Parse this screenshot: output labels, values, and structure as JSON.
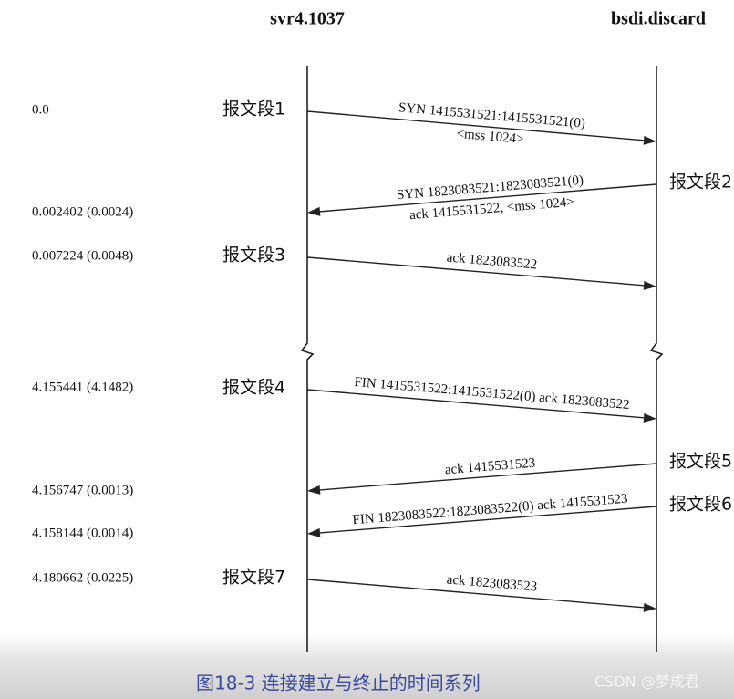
{
  "header": {
    "left": "svr4.1037",
    "right": "bsdi.discard"
  },
  "segments": [
    {
      "time": "0.0",
      "label": "报文段1",
      "lines": [
        "SYN 1415531521:1415531521(0)",
        "<mss 1024>"
      ]
    },
    {
      "time": "0.002402 (0.0024)",
      "label": "报文段2",
      "lines": [
        "SYN 1823083521:1823083521(0)",
        "ack 1415531522, <mss 1024>"
      ]
    },
    {
      "time": "0.007224 (0.0048)",
      "label": "报文段3",
      "lines": [
        "ack 1823083522"
      ]
    },
    {
      "time": "4.155441 (4.1482)",
      "label": "报文段4",
      "lines": [
        "FIN 1415531522:1415531522(0) ack 1823083522"
      ]
    },
    {
      "time": "4.156747 (0.0013)",
      "label": "报文段5",
      "lines": [
        "ack 1415531523"
      ]
    },
    {
      "time": "4.158144 (0.0014)",
      "label": "报文段6",
      "lines": [
        "FIN 1823083522:1823083522(0) ack 1415531523"
      ]
    },
    {
      "time": "4.180662 (0.0225)",
      "label": "报文段7",
      "lines": [
        "ack 1823083523"
      ]
    }
  ],
  "caption": "图18-3 连接建立与终止的时间系列",
  "watermark": "CSDN @梦成君"
}
